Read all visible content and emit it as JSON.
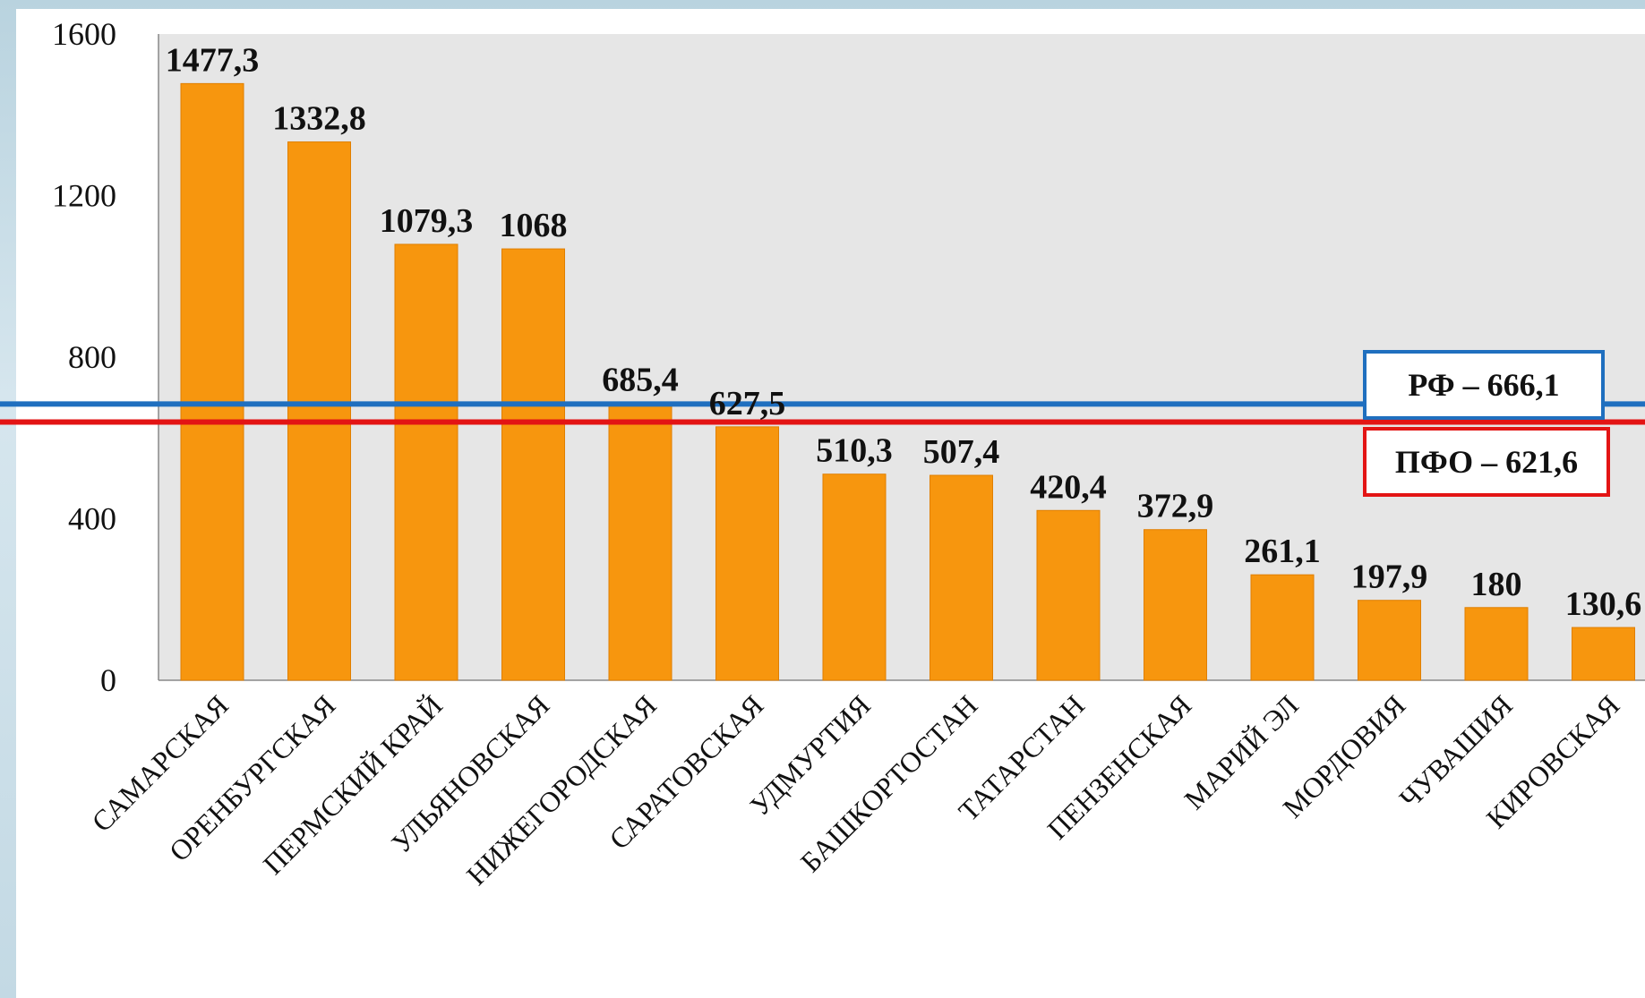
{
  "chart_data": {
    "type": "bar",
    "categories": [
      "САМАРСКАЯ",
      "ОРЕНБУРГСКАЯ",
      "ПЕРМСКИЙ КРАЙ",
      "УЛЬЯНОВСКАЯ",
      "НИЖЕГОРОДСКАЯ",
      "САРАТОВСКАЯ",
      "УДМУРТИЯ",
      "БАШКОРТОСТАН",
      "ТАТАРСТАН",
      "ПЕНЗЕНСКАЯ",
      "МАРИЙ ЭЛ",
      "МОРДОВИЯ",
      "ЧУВАШИЯ",
      "КИРОВСКАЯ"
    ],
    "values": [
      1477.3,
      1332.8,
      1079.3,
      1068,
      685.4,
      627.5,
      510.3,
      507.4,
      420.4,
      372.9,
      261.1,
      197.9,
      180,
      130.6
    ],
    "value_labels": [
      "1477,3",
      "1332,8",
      "1079,3",
      "1068",
      "685,4",
      "627,5",
      "510,3",
      "507,4",
      "420,4",
      "372,9",
      "261,1",
      "197,9",
      "180",
      "130,6"
    ],
    "yticks": [
      0,
      400,
      800,
      1200,
      1600
    ],
    "ylim": [
      0,
      1600
    ],
    "bar_color": "#f7960e",
    "plot_background": "#e6e6e6",
    "reference_lines": [
      {
        "label": "РФ – 666,1",
        "value": 666.1,
        "color": "#1f6fbf"
      },
      {
        "label": "ПФО – 621,6",
        "value": 621.6,
        "color": "#e31414"
      }
    ]
  }
}
